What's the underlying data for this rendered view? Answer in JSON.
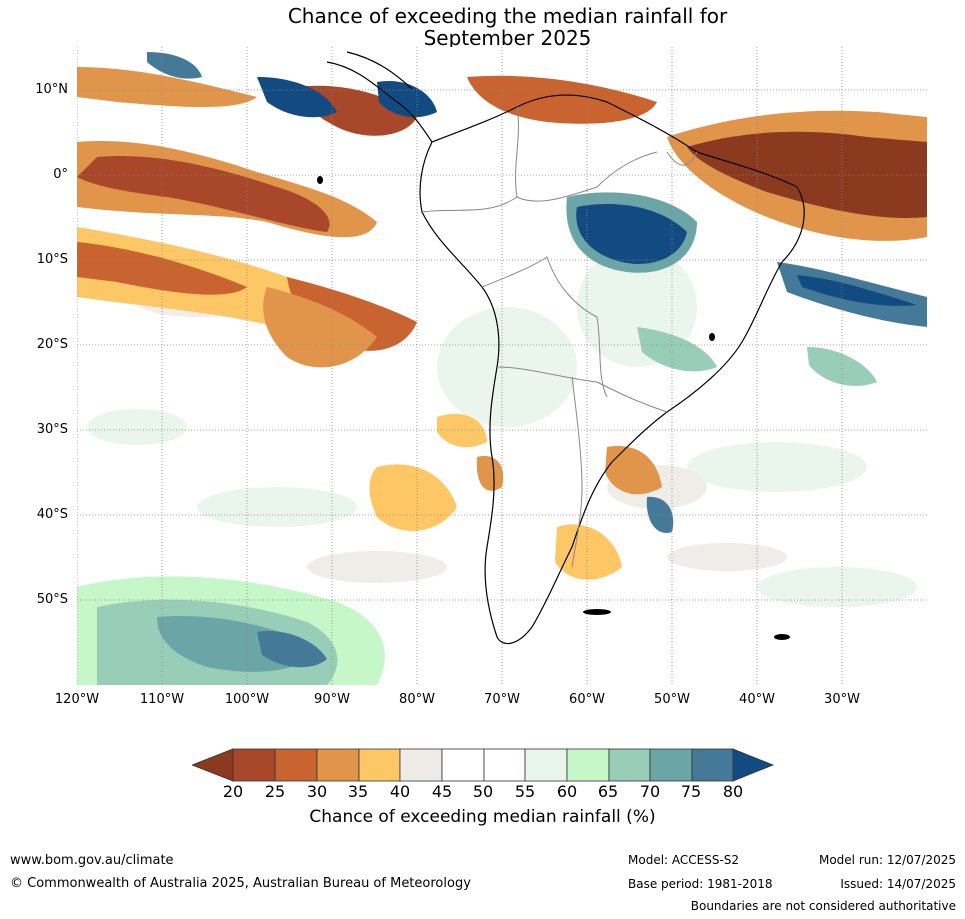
{
  "title_line1": "Chance of exceeding the median rainfall for",
  "title_line2": "September 2025",
  "lat_labels": [
    "10°N",
    "0°",
    "10°S",
    "20°S",
    "30°S",
    "40°S",
    "50°S"
  ],
  "lon_labels": [
    "120°W",
    "110°W",
    "100°W",
    "90°W",
    "80°W",
    "70°W",
    "60°W",
    "50°W",
    "40°W",
    "30°W"
  ],
  "colorbar": {
    "ticks": [
      "20",
      "25",
      "30",
      "35",
      "40",
      "45",
      "50",
      "55",
      "60",
      "65",
      "70",
      "75",
      "80"
    ],
    "colors": [
      "#8b3a1f",
      "#a9472a",
      "#c9632f",
      "#e0954a",
      "#fdc765",
      "#efebe6",
      "#ffffff",
      "#ffffff",
      "#e8f5ea",
      "#c5f7c8",
      "#98cdb7",
      "#6ca5a6",
      "#447a98",
      "#124a82"
    ],
    "title": "Chance of exceeding median rainfall (%)"
  },
  "footer": {
    "website": "www.bom.gov.au/climate",
    "copyright": "© Commonwealth of Australia 2025, Australian Bureau of Meteorology",
    "model": "Model: ACCESS-S2",
    "base_period": "Base period: 1981-2018",
    "model_run": "Model run: 12/07/2025",
    "issued": "Issued: 14/07/2025",
    "disclaimer": "Boundaries are not considered authoritative"
  }
}
